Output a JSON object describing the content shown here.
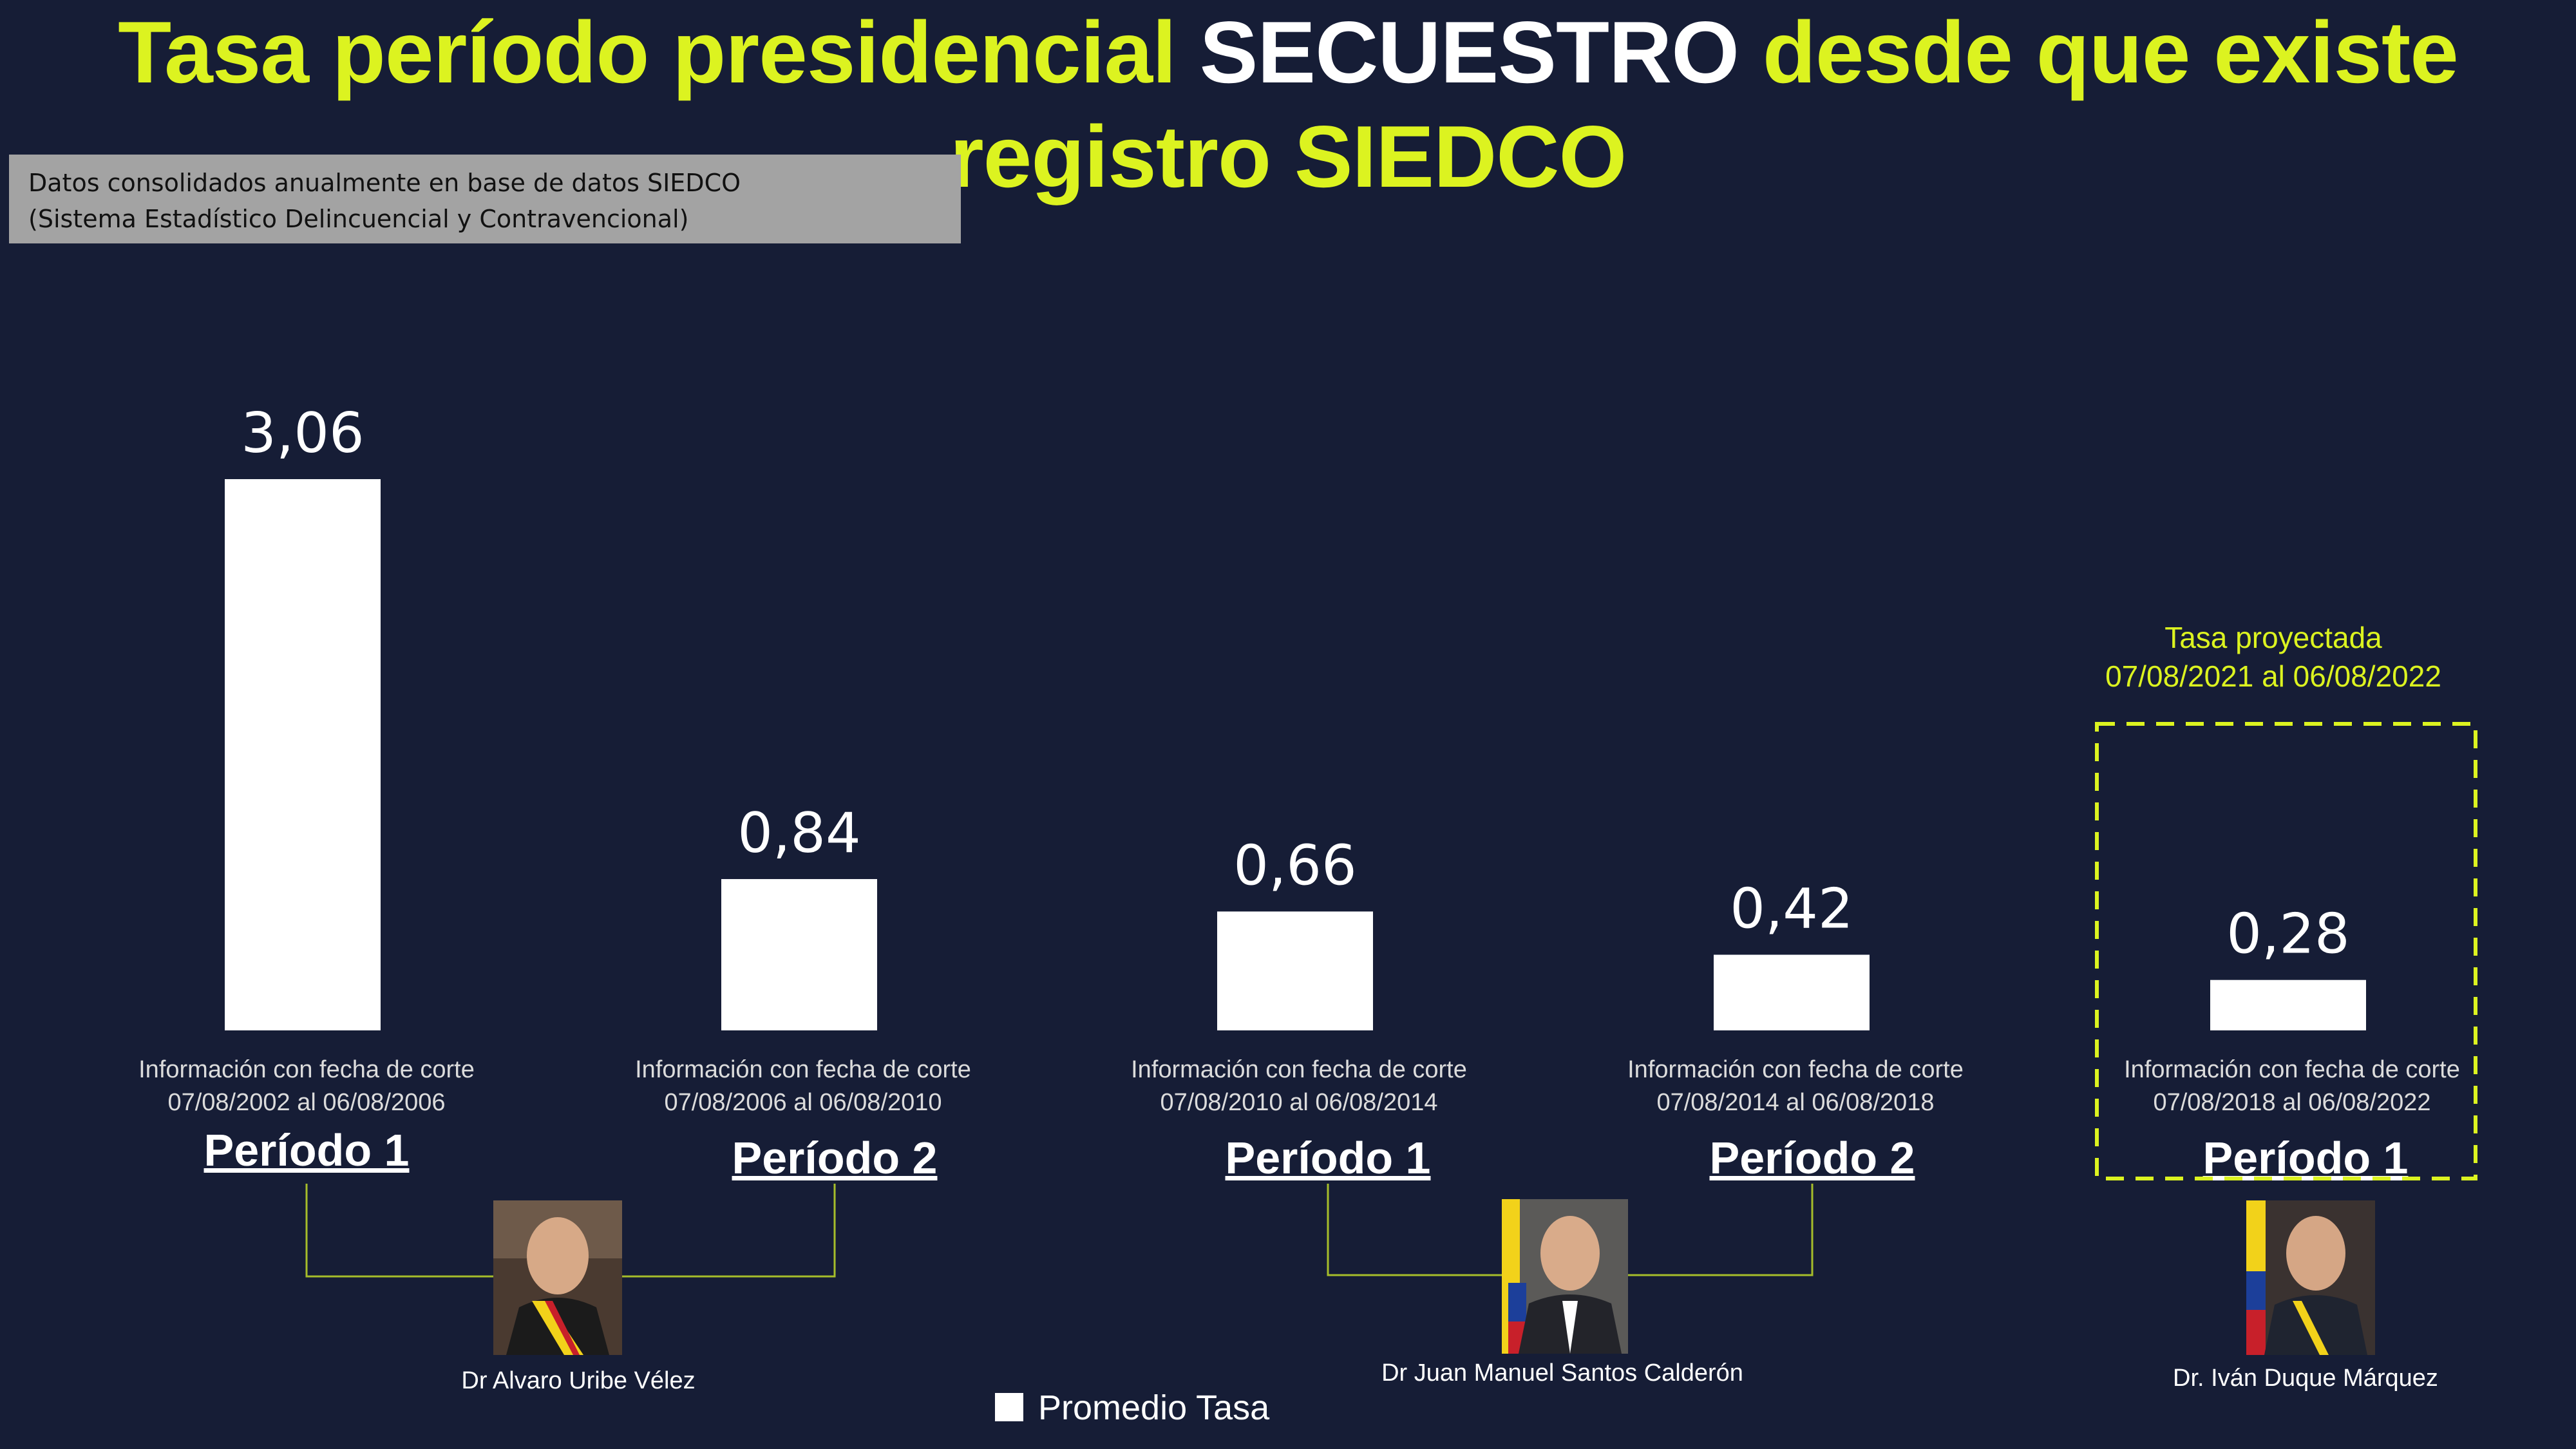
{
  "header": {
    "title_part1": "Tasa período presidencial ",
    "title_highlight": "SECUESTRO",
    "title_part2": " desde que existe registro SIEDCO"
  },
  "note": {
    "line1": "Datos consolidados anualmente en base de datos SIEDCO",
    "line2": "(Sistema Estadístico Delincuencial y Contravencional)"
  },
  "chart_data": {
    "type": "bar",
    "categories": [
      "Período 1",
      "Período 2",
      "Período 1",
      "Período 2",
      "Período 1"
    ],
    "series": [
      {
        "name": "Promedio Tasa",
        "values": [
          3.06,
          0.84,
          0.66,
          0.42,
          0.28
        ]
      }
    ],
    "data_labels": [
      "3,06",
      "0,84",
      "0,66",
      "0,42",
      "0,28"
    ],
    "cut_label": "Información con fecha de corte",
    "date_ranges": [
      "07/08/2002 al 06/08/2006",
      "07/08/2006 al 06/08/2010",
      "07/08/2010 al 06/08/2014",
      "07/08/2014 al 06/08/2018",
      "07/08/2018 al 06/08/2022"
    ],
    "presidents": [
      "Dr Alvaro Uribe Vélez",
      "Dr Juan Manuel Santos Calderón",
      "Dr. Iván Duque Márquez"
    ],
    "projection": {
      "line1": "Tasa proyectada",
      "line2": "07/08/2021 al 06/08/2022"
    },
    "ylim": [
      0,
      3.06
    ],
    "grid": false,
    "legend": "bottom-center",
    "colors": {
      "bars": "#ffffff",
      "background": "#161d36",
      "accent": "#dcf320"
    }
  }
}
